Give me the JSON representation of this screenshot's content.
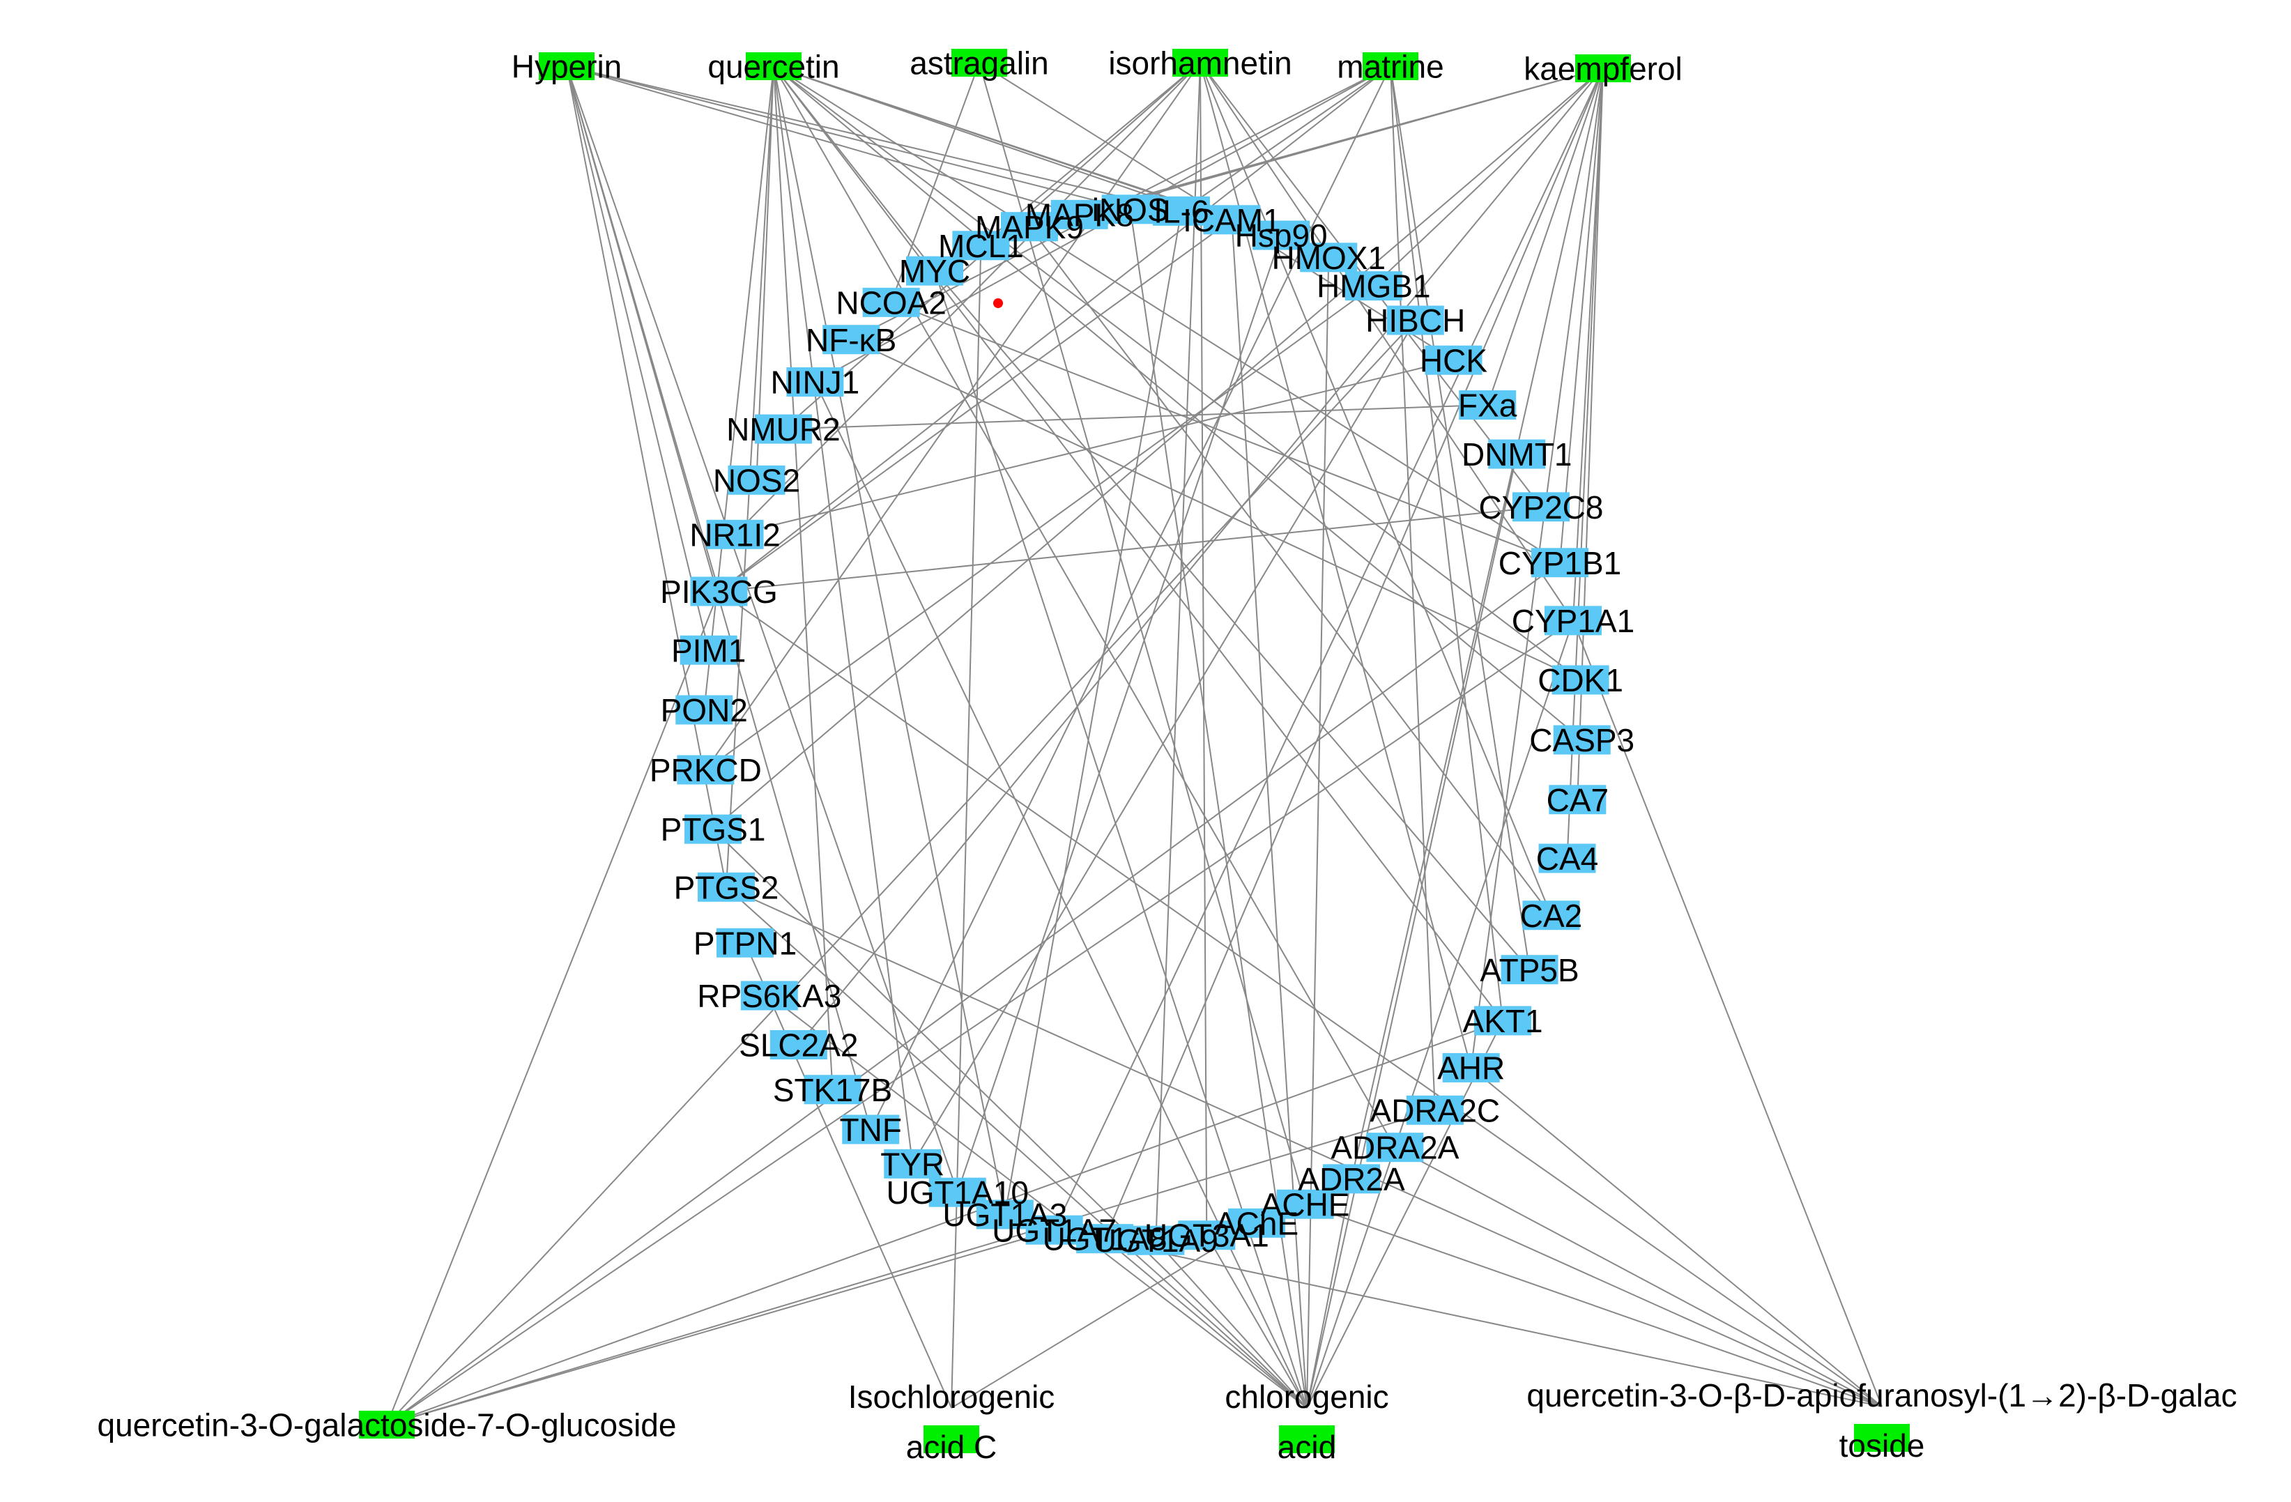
{
  "colors": {
    "compound_node": "#00ee00",
    "target_node": "#5bc8f5",
    "edge": "#888888",
    "dot": "#ff0000"
  },
  "compounds": [
    {
      "id": "c_hyperin",
      "label": "Hyperin"
    },
    {
      "id": "c_quercetin",
      "label": "quercetin"
    },
    {
      "id": "c_astragalin",
      "label": "astragalin"
    },
    {
      "id": "c_isorhamnetin",
      "label": "isorhamnetin"
    },
    {
      "id": "c_matrine",
      "label": "matrine"
    },
    {
      "id": "c_kaempferol",
      "label": "kaempferol"
    },
    {
      "id": "c_q3gal7glc",
      "label": "quercetin-3-O-galactoside-7-O-glucoside"
    },
    {
      "id": "c_isochlorogenic",
      "label": "Isochlorogenic acid C"
    },
    {
      "id": "c_chlorogenic",
      "label": "chlorogenic acid"
    },
    {
      "id": "c_q3apio",
      "label": "quercetin-3-O-β-D-apiofuranosyl-(1→2)-β-D-galactoside"
    }
  ],
  "targets": [
    "NCOA2",
    "MYC",
    "MCL1",
    "MAPK9",
    "MAPK8",
    "iNOS",
    "IL-6",
    "ICAM1",
    "Hsp90",
    "HMOX1",
    "HMGB1",
    "HIBCH",
    "HCK",
    "FXa",
    "DNMT1",
    "CYP2C8",
    "CYP1B1",
    "CYP1A1",
    "CDK1",
    "CASP3",
    "CA7",
    "CA4",
    "CA2",
    "ATP5B",
    "AKT1",
    "AHR",
    "ADRA2C",
    "ADRA2A",
    "ADR2A",
    "ACHE",
    "AChE",
    "UGT3A1",
    "UGT1A9",
    "UGT1A8",
    "UGT1A7",
    "UGT1A3",
    "UGT1A10",
    "TYR",
    "TNF",
    "STK17B",
    "SLC2A2",
    "RPS6KA3",
    "PTPN1",
    "PTGS2",
    "PTGS1",
    "PRKCD",
    "PON2",
    "PIM1",
    "PIK3CG",
    "NR1I2",
    "NOS2",
    "NMUR2",
    "NINJ1",
    "NF-κB"
  ],
  "edges": [
    [
      "c_hyperin",
      "PIK3CG"
    ],
    [
      "c_hyperin",
      "PIM1"
    ],
    [
      "c_hyperin",
      "PTGS2"
    ],
    [
      "c_hyperin",
      "iNOS"
    ],
    [
      "c_hyperin",
      "MAPK8"
    ],
    [
      "c_hyperin",
      "IL-6"
    ],
    [
      "c_hyperin",
      "UGT1A10"
    ],
    [
      "c_hyperin",
      "TNF"
    ],
    [
      "c_quercetin",
      "MYC"
    ],
    [
      "c_quercetin",
      "HMOX1"
    ],
    [
      "c_quercetin",
      "AKT1"
    ],
    [
      "c_quercetin",
      "CYP1B1"
    ],
    [
      "c_quercetin",
      "PTGS2"
    ],
    [
      "c_quercetin",
      "UGT1A3"
    ],
    [
      "c_quercetin",
      "Hsp90"
    ],
    [
      "c_quercetin",
      "PON2"
    ],
    [
      "c_quercetin",
      "NOS2"
    ],
    [
      "c_quercetin",
      "ADRA2A"
    ],
    [
      "c_quercetin",
      "CASP3"
    ],
    [
      "c_quercetin",
      "ICAM1"
    ],
    [
      "c_quercetin",
      "TYR"
    ],
    [
      "c_quercetin",
      "STK17B"
    ],
    [
      "c_quercetin",
      "CDK1"
    ],
    [
      "c_astragalin",
      "NCOA2"
    ],
    [
      "c_astragalin",
      "ACHE"
    ],
    [
      "c_astragalin",
      "HCK"
    ],
    [
      "c_isorhamnetin",
      "NR1I2"
    ],
    [
      "c_isorhamnetin",
      "AHR"
    ],
    [
      "c_isorhamnetin",
      "CYP1A1"
    ],
    [
      "c_isorhamnetin",
      "UGT1A9"
    ],
    [
      "c_isorhamnetin",
      "MCL1"
    ],
    [
      "c_isorhamnetin",
      "NMUR2"
    ],
    [
      "c_isorhamnetin",
      "CA2"
    ],
    [
      "c_isorhamnetin",
      "PRKCD"
    ],
    [
      "c_isorhamnetin",
      "UGT3A1"
    ],
    [
      "c_isorhamnetin",
      "CYP2C8"
    ],
    [
      "c_matrine",
      "PIK3CG"
    ],
    [
      "c_matrine",
      "IL-6"
    ],
    [
      "c_matrine",
      "NF-κB"
    ],
    [
      "c_matrine",
      "AKT1"
    ],
    [
      "c_matrine",
      "TNF"
    ],
    [
      "c_matrine",
      "ADRA2C"
    ],
    [
      "c_matrine",
      "NINJ1"
    ],
    [
      "c_matrine",
      "ATP5B"
    ],
    [
      "c_kaempferol",
      "MAPK8"
    ],
    [
      "c_kaempferol",
      "CYP1A1"
    ],
    [
      "c_kaempferol",
      "CYP1B1"
    ],
    [
      "c_kaempferol",
      "UGT1A7"
    ],
    [
      "c_kaempferol",
      "UGT1A8"
    ],
    [
      "c_kaempferol",
      "PTGS1"
    ],
    [
      "c_kaempferol",
      "HMGB1"
    ],
    [
      "c_kaempferol",
      "AHR"
    ],
    [
      "c_kaempferol",
      "CA7"
    ],
    [
      "c_kaempferol",
      "CA4"
    ],
    [
      "c_kaempferol",
      "FXa"
    ],
    [
      "c_kaempferol",
      "ADR2A"
    ],
    [
      "c_kaempferol",
      "SLC2A2"
    ],
    [
      "c_kaempferol",
      "MAPK9"
    ],
    [
      "c_q3gal7glc",
      "PIK3CG"
    ],
    [
      "c_q3gal7glc",
      "AKT1"
    ],
    [
      "c_q3gal7glc",
      "CYP1B1"
    ],
    [
      "c_q3gal7glc",
      "CYP1A1"
    ],
    [
      "c_q3gal7glc",
      "UGT1A7"
    ],
    [
      "c_q3gal7glc",
      "HIBCH"
    ],
    [
      "c_q3gal7glc",
      "ADRA2C"
    ],
    [
      "c_isochlorogenic",
      "PTPN1"
    ],
    [
      "c_isochlorogenic",
      "AChE"
    ],
    [
      "c_isochlorogenic",
      "MCL1"
    ],
    [
      "c_chlorogenic",
      "PTGS1"
    ],
    [
      "c_chlorogenic",
      "PTGS2"
    ],
    [
      "c_chlorogenic",
      "UGT1A9"
    ],
    [
      "c_chlorogenic",
      "UGT3A1"
    ],
    [
      "c_chlorogenic",
      "AKT1"
    ],
    [
      "c_chlorogenic",
      "CYP1A1"
    ],
    [
      "c_chlorogenic",
      "ICAM1"
    ],
    [
      "c_chlorogenic",
      "HMOX1"
    ],
    [
      "c_chlorogenic",
      "DNMT1"
    ],
    [
      "c_chlorogenic",
      "RPS6KA3"
    ],
    [
      "c_chlorogenic",
      "MYC"
    ],
    [
      "c_chlorogenic",
      "UGT1A8"
    ],
    [
      "c_chlorogenic",
      "ADR2A"
    ],
    [
      "c_chlorogenic",
      "iNOS"
    ],
    [
      "c_chlorogenic",
      "NINJ1"
    ],
    [
      "c_q3apio",
      "PIK3CG"
    ],
    [
      "c_q3apio",
      "CYP1A1"
    ],
    [
      "c_q3apio",
      "UGT1A7"
    ],
    [
      "c_q3apio",
      "ADRA2A"
    ],
    [
      "c_q3apio",
      "ACHE"
    ],
    [
      "c_q3apio",
      "AHR"
    ],
    [
      "c_q3apio",
      "PTGS2"
    ],
    [
      "PIK3CG",
      "ICAM1"
    ],
    [
      "PIK3CG",
      "CYP2C8"
    ],
    [
      "NCOA2",
      "CYP1B1"
    ],
    [
      "MYC",
      "ATP5B"
    ],
    [
      "HMGB1",
      "PRKCD"
    ],
    [
      "IL-6",
      "UGT1A3"
    ],
    [
      "NF-κB",
      "CDK1"
    ],
    [
      "Hsp90",
      "UGT1A10"
    ],
    [
      "MAPK9",
      "CA2"
    ],
    [
      "NR1I2",
      "HCK"
    ],
    [
      "NMUR2",
      "FXa"
    ],
    [
      "TYR",
      "HIBCH"
    ]
  ]
}
